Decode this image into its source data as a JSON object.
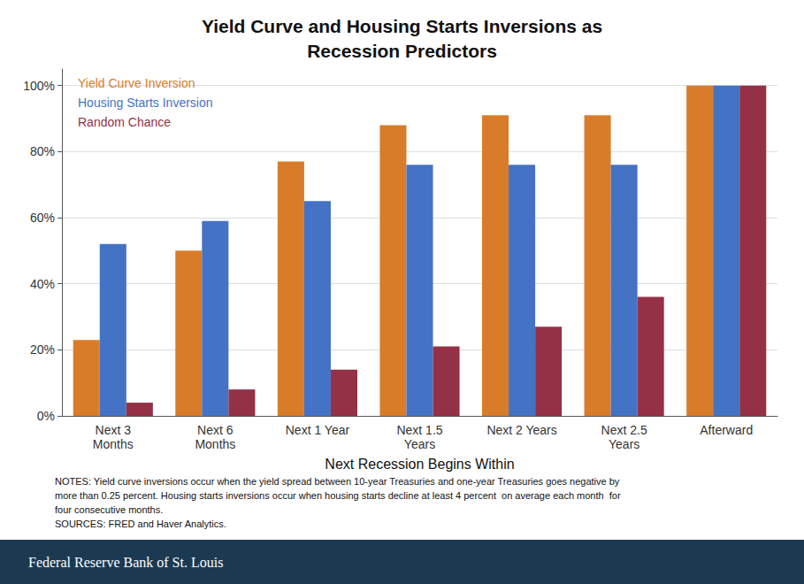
{
  "chart_data": {
    "type": "bar",
    "title": "Yield Curve and Housing Starts Inversions as\nRecession Predictors",
    "xlabel": "Next Recession Begins Within",
    "categories": [
      "Next 3\nMonths",
      "Next 6\nMonths",
      "Next 1 Year",
      "Next 1.5\nYears",
      "Next 2 Years",
      "Next 2.5\nYears",
      "Afterward"
    ],
    "series": [
      {
        "name": "Yield Curve Inversion",
        "color": "#D97C29",
        "values": [
          23,
          50,
          77,
          88,
          91,
          91,
          100
        ]
      },
      {
        "name": "Housing Starts Inversion",
        "color": "#4472C4",
        "values": [
          52,
          59,
          65,
          76,
          76,
          76,
          100
        ]
      },
      {
        "name": "Random Chance",
        "color": "#943147",
        "values": [
          4,
          8,
          14,
          21,
          27,
          36,
          100
        ]
      }
    ],
    "ylim": [
      0,
      105
    ],
    "yticks": [
      {
        "value": 0,
        "label": "0%"
      },
      {
        "value": 20,
        "label": "20%"
      },
      {
        "value": 40,
        "label": "40%"
      },
      {
        "value": 60,
        "label": "60%"
      },
      {
        "value": 80,
        "label": "80%"
      },
      {
        "value": 100,
        "label": "100%"
      }
    ],
    "grid": true,
    "legend": "upper left",
    "notes": [
      "NOTES: Yield curve inversions occur when the yield spread between 10-year Treasuries and one-year Treasuries goes negative by",
      "more than 0.25 percent. Housing starts inversions occur when housing starts decline at least 4 percent  on average each month  for",
      "four consecutive months."
    ],
    "sources": "SOURCES: FRED and Haver Analytics.",
    "footer": "Federal Reserve Bank of St. Louis"
  }
}
